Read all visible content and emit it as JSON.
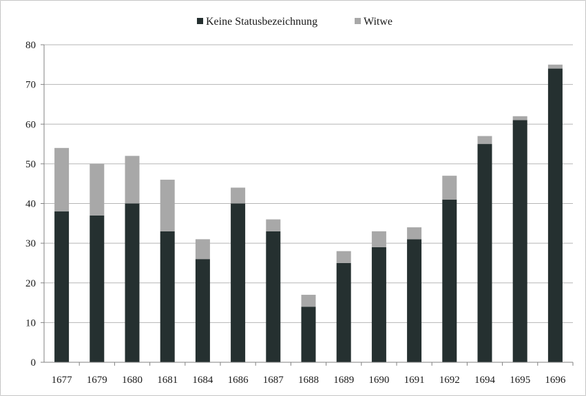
{
  "chart_data": {
    "type": "bar",
    "stacked": true,
    "title": "",
    "xlabel": "",
    "ylabel": "",
    "ylim": [
      0,
      80
    ],
    "yticks": [
      0,
      10,
      20,
      30,
      40,
      50,
      60,
      70,
      80
    ],
    "grid": true,
    "legend_position": "top",
    "categories": [
      "1677",
      "1679",
      "1680",
      "1681",
      "1684",
      "1686",
      "1687",
      "1688",
      "1689",
      "1690",
      "1691",
      "1692",
      "1694",
      "1695",
      "1696"
    ],
    "series": [
      {
        "name": "Keine Statusbezeichnung",
        "color": "#253030",
        "values": [
          38,
          37,
          40,
          33,
          26,
          40,
          33,
          14,
          25,
          29,
          31,
          41,
          55,
          61,
          74
        ]
      },
      {
        "name": "Witwe",
        "color": "#a8a8a8",
        "values": [
          16,
          13,
          12,
          13,
          5,
          4,
          3,
          3,
          3,
          4,
          3,
          6,
          2,
          1,
          1
        ]
      }
    ]
  }
}
